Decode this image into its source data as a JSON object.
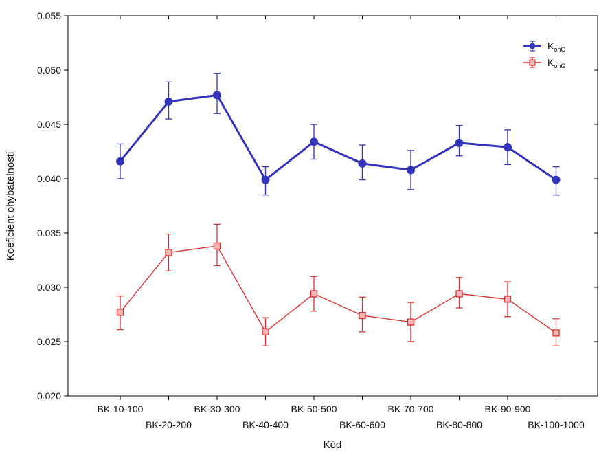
{
  "chart_data": {
    "type": "line",
    "title": "",
    "xlabel": "Kód",
    "ylabel": "Koeficient ohybatelnosti",
    "ylim": [
      0.02,
      0.055
    ],
    "yticks": [
      "0.020",
      "0.025",
      "0.030",
      "0.035",
      "0.040",
      "0.045",
      "0.050",
      "0.055"
    ],
    "categories": [
      "BK-10-100",
      "BK-20-200",
      "BK-30-300",
      "BK-40-400",
      "BK-50-500",
      "BK-60-600",
      "BK-70-700",
      "BK-80-800",
      "BK-90-900",
      "BK-100-1000"
    ],
    "legend_position": "top-right",
    "grid": false,
    "series": [
      {
        "name": "K",
        "name_sub": "ohC",
        "color": "#3333bb",
        "marker": "circle",
        "values": [
          0.0416,
          0.0471,
          0.0477,
          0.0399,
          0.0434,
          0.0414,
          0.0408,
          0.0433,
          0.0429,
          0.0399
        ],
        "err_low": [
          0.04,
          0.0455,
          0.046,
          0.0385,
          0.0418,
          0.0399,
          0.039,
          0.0421,
          0.0413,
          0.0385
        ],
        "err_high": [
          0.0432,
          0.0489,
          0.0497,
          0.0411,
          0.045,
          0.0431,
          0.0426,
          0.0449,
          0.0445,
          0.0411
        ]
      },
      {
        "name": "K",
        "name_sub": "ohG",
        "color": "#e03030",
        "marker": "square",
        "values": [
          0.0277,
          0.0332,
          0.0338,
          0.0259,
          0.0294,
          0.0274,
          0.0268,
          0.0294,
          0.0289,
          0.0258
        ],
        "err_low": [
          0.0261,
          0.0315,
          0.032,
          0.0246,
          0.0278,
          0.0259,
          0.025,
          0.0281,
          0.0273,
          0.0246
        ],
        "err_high": [
          0.0292,
          0.0349,
          0.0358,
          0.0272,
          0.031,
          0.0291,
          0.0286,
          0.0309,
          0.0305,
          0.0271
        ]
      }
    ]
  }
}
